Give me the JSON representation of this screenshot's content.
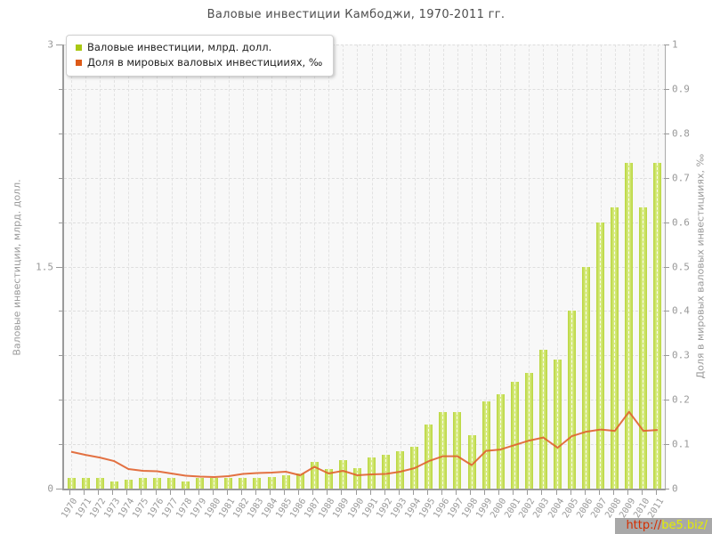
{
  "watermark": {
    "prefix": "http://",
    "domain": "be5.biz/"
  },
  "chart_data": {
    "type": "bar",
    "title": "Валовые инвестиции Камбоджи, 1970-2011 гг.",
    "categories": [
      "1970",
      "1971",
      "1972",
      "1973",
      "1974",
      "1975",
      "1976",
      "1977",
      "1978",
      "1979",
      "1980",
      "1981",
      "1982",
      "1983",
      "1984",
      "1985",
      "1986",
      "1987",
      "1988",
      "1989",
      "1990",
      "1991",
      "1992",
      "1993",
      "1994",
      "1995",
      "1996",
      "1997",
      "1998",
      "1999",
      "2000",
      "2001",
      "2002",
      "2003",
      "2004",
      "2005",
      "2006",
      "2007",
      "2008",
      "2009",
      "2010",
      "2011"
    ],
    "series": [
      {
        "name": "Валовые инвестиции, млрд. долл.",
        "type": "bar",
        "axis": "left",
        "marker_color": "#a9c813",
        "bar_color": "#c6e155",
        "values": [
          0.07,
          0.07,
          0.07,
          0.05,
          0.06,
          0.07,
          0.07,
          0.07,
          0.05,
          0.07,
          0.07,
          0.07,
          0.07,
          0.07,
          0.08,
          0.09,
          0.1,
          0.18,
          0.13,
          0.19,
          0.14,
          0.21,
          0.23,
          0.25,
          0.28,
          0.43,
          0.52,
          0.52,
          0.36,
          0.59,
          0.64,
          0.72,
          0.78,
          0.94,
          0.87,
          1.2,
          1.5,
          1.8,
          1.9,
          2.2,
          1.9,
          2.2
        ]
      },
      {
        "name": "Доля в мировых валовых инвестицииях, ‰",
        "type": "line",
        "axis": "right",
        "marker_color": "#dd5a17",
        "line_color": "#e0622d",
        "values": [
          0.083,
          0.076,
          0.07,
          0.062,
          0.044,
          0.04,
          0.039,
          0.034,
          0.029,
          0.027,
          0.026,
          0.028,
          0.033,
          0.035,
          0.036,
          0.038,
          0.03,
          0.049,
          0.034,
          0.04,
          0.03,
          0.032,
          0.033,
          0.038,
          0.046,
          0.062,
          0.073,
          0.073,
          0.053,
          0.085,
          0.088,
          0.098,
          0.108,
          0.115,
          0.092,
          0.118,
          0.128,
          0.133,
          0.13,
          0.173,
          0.13,
          0.132
        ]
      }
    ],
    "left_axis": {
      "label": "Валовые инвестиции, млрд. долл.",
      "min": 0,
      "max": 3,
      "major_ticks": [
        0,
        1.5,
        3
      ],
      "minor_step": 0.3
    },
    "right_axis": {
      "label": "Доля в мировых валовых инвестицииях, ‰",
      "min": 0,
      "max": 1,
      "tick_step": 0.1
    },
    "grid": true,
    "legend_position": "top-left",
    "colors": {
      "plot_bg": "#f8f8f8",
      "grid": "#dedede",
      "axis": "#9a9a9a",
      "tick_text": "#999999",
      "title_text": "#4d4d4d"
    }
  }
}
